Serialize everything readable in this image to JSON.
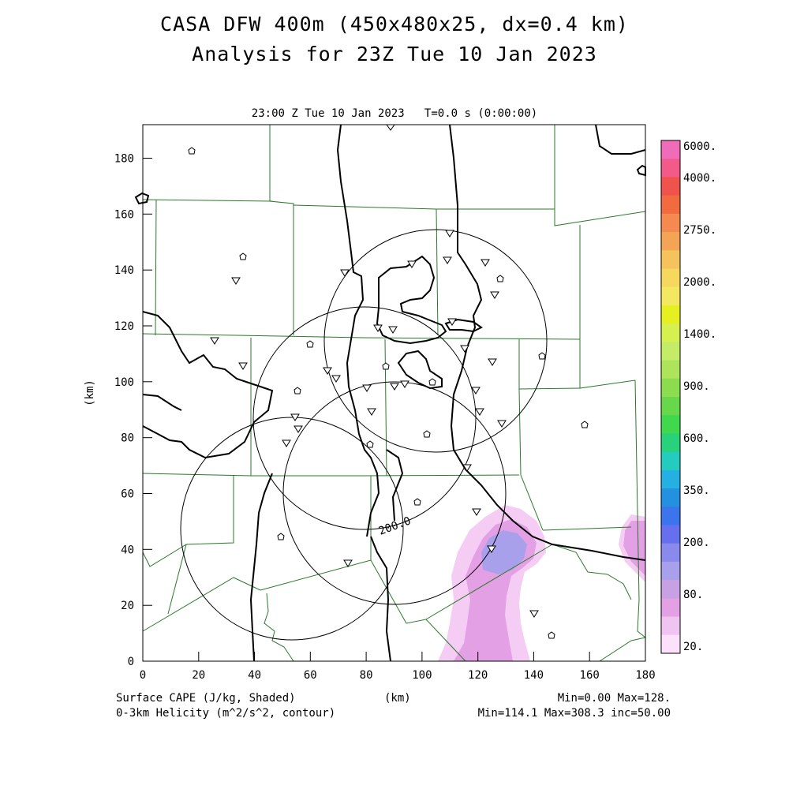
{
  "title": {
    "line1": "CASA DFW 400m (450x480x25, dx=0.4 km)",
    "line2": "Analysis for 23Z Tue 10 Jan 2023",
    "time_label": "23:00 Z Tue 10 Jan 2023   T=0.0 s (0:00:00)"
  },
  "axes": {
    "xlabel": "(km)",
    "ylabel": "(km)",
    "x_ticks": [
      "0",
      "20",
      "40",
      "60",
      "80",
      "100",
      "120",
      "140",
      "160",
      "180"
    ],
    "y_ticks": [
      "0",
      "20",
      "40",
      "60",
      "80",
      "100",
      "120",
      "140",
      "160",
      "180"
    ],
    "xlim": [
      0,
      180
    ],
    "ylim": [
      0,
      192
    ]
  },
  "colorbar": {
    "labels": [
      "6000.",
      "4000.",
      "2750.",
      "2000.",
      "1400.",
      "900.",
      "600.",
      "350.",
      "200.",
      "80.",
      "20."
    ],
    "colors": [
      "#f06cb8",
      "#f25a8a",
      "#f0534c",
      "#f26a40",
      "#f48a50",
      "#f4a455",
      "#f6c25c",
      "#f6d85e",
      "#f3e860",
      "#e6f020",
      "#d6f050",
      "#c4ec66",
      "#aee45a",
      "#8cdc50",
      "#66d84a",
      "#40d84c",
      "#28d27a",
      "#24ccc0",
      "#24b0e0",
      "#2490e0",
      "#3c74ee",
      "#6670ee",
      "#8a8aee",
      "#a8a0ea",
      "#c8a0e4",
      "#e4a0e4",
      "#f0c4f0",
      "#fce0fc"
    ]
  },
  "footer": {
    "left1": "Surface CAPE (J/kg, Shaded)",
    "left2": "0-3km Helicity (m^2/s^2, contour)",
    "center": "(km)",
    "right1": "Min=0.00 Max=128.",
    "right2": "Min=114.1 Max=308.3 inc=50.00"
  },
  "contour_label": "200.0",
  "colors": {
    "county_lines": "#2a7a2a",
    "contour": "#000000",
    "cape_light": "#f4ccf4",
    "cape_mid": "#e4a0e4",
    "cape_high": "#a8a0ea"
  }
}
